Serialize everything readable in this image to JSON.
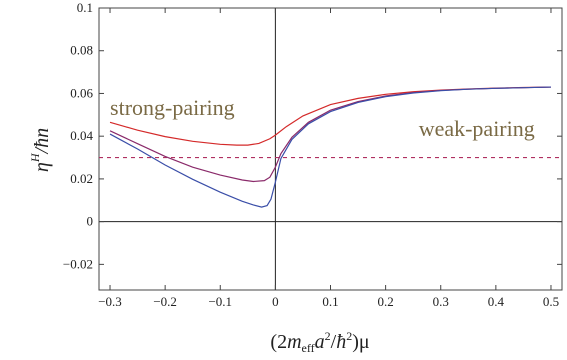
{
  "chart_data": {
    "type": "line",
    "xlabel_parts": {
      "pre": "(2",
      "m": "m",
      "eff": "eff",
      "a": "a",
      "a_exp": "2",
      "slash": "/",
      "hbar": "ħ",
      "hbar_exp": "2",
      "post": ")μ"
    },
    "ylabel_parts": {
      "eta": "η",
      "sup": "H",
      "rest": "/ħn"
    },
    "xlim": [
      -0.32,
      0.52
    ],
    "ylim": [
      -0.032,
      0.1
    ],
    "xticks": [
      {
        "value": -0.3,
        "label": "−0.3"
      },
      {
        "value": -0.2,
        "label": "−0.2"
      },
      {
        "value": -0.1,
        "label": "−0.1"
      },
      {
        "value": 0,
        "label": "0"
      },
      {
        "value": 0.1,
        "label": "0.1"
      },
      {
        "value": 0.2,
        "label": "0.2"
      },
      {
        "value": 0.3,
        "label": "0.3"
      },
      {
        "value": 0.4,
        "label": "0.4"
      },
      {
        "value": 0.5,
        "label": "0.5"
      }
    ],
    "yticks": [
      {
        "value": -0.02,
        "label": "−0.02"
      },
      {
        "value": 0,
        "label": "0"
      },
      {
        "value": 0.02,
        "label": "0.02"
      },
      {
        "value": 0.04,
        "label": "0.04"
      },
      {
        "value": 0.06,
        "label": "0.06"
      },
      {
        "value": 0.08,
        "label": "0.08"
      },
      {
        "value": 0.1,
        "label": "0.1"
      }
    ],
    "annotations": [
      {
        "text": "strong-pairing",
        "x": -0.3,
        "y": 0.05
      },
      {
        "text": "weak-pairing",
        "x": 0.26,
        "y": 0.04
      }
    ],
    "reference_line": {
      "y": 0.03,
      "style": "dashed",
      "color": "#b03060"
    },
    "series": [
      {
        "color": "#d42a2a",
        "points": [
          [
            -0.3,
            0.0465
          ],
          [
            -0.25,
            0.0428
          ],
          [
            -0.2,
            0.0398
          ],
          [
            -0.15,
            0.0376
          ],
          [
            -0.1,
            0.0362
          ],
          [
            -0.07,
            0.0358
          ],
          [
            -0.05,
            0.0358
          ],
          [
            -0.03,
            0.0366
          ],
          [
            -0.01,
            0.0388
          ],
          [
            0.0,
            0.0405
          ],
          [
            0.02,
            0.0445
          ],
          [
            0.05,
            0.0495
          ],
          [
            0.1,
            0.0548
          ],
          [
            0.15,
            0.0577
          ],
          [
            0.2,
            0.0596
          ],
          [
            0.25,
            0.0608
          ],
          [
            0.3,
            0.0616
          ],
          [
            0.35,
            0.0621
          ],
          [
            0.4,
            0.0625
          ],
          [
            0.45,
            0.0628
          ],
          [
            0.5,
            0.063
          ]
        ]
      },
      {
        "color": "#8a2a6a",
        "points": [
          [
            -0.3,
            0.0425
          ],
          [
            -0.25,
            0.0365
          ],
          [
            -0.2,
            0.0305
          ],
          [
            -0.15,
            0.0255
          ],
          [
            -0.1,
            0.0218
          ],
          [
            -0.06,
            0.0195
          ],
          [
            -0.04,
            0.0188
          ],
          [
            -0.02,
            0.0192
          ],
          [
            -0.01,
            0.0208
          ],
          [
            0.0,
            0.0255
          ],
          [
            0.01,
            0.0318
          ],
          [
            0.03,
            0.0395
          ],
          [
            0.06,
            0.0465
          ],
          [
            0.1,
            0.0522
          ],
          [
            0.15,
            0.0562
          ],
          [
            0.2,
            0.0588
          ],
          [
            0.25,
            0.0604
          ],
          [
            0.3,
            0.0614
          ],
          [
            0.35,
            0.062
          ],
          [
            0.4,
            0.0624
          ],
          [
            0.45,
            0.0627
          ],
          [
            0.5,
            0.063
          ]
        ]
      },
      {
        "color": "#3a4ea8",
        "points": [
          [
            -0.3,
            0.041
          ],
          [
            -0.25,
            0.034
          ],
          [
            -0.2,
            0.0265
          ],
          [
            -0.15,
            0.0198
          ],
          [
            -0.1,
            0.0138
          ],
          [
            -0.06,
            0.0095
          ],
          [
            -0.04,
            0.0078
          ],
          [
            -0.025,
            0.0068
          ],
          [
            -0.015,
            0.0075
          ],
          [
            -0.008,
            0.0105
          ],
          [
            0.0,
            0.0185
          ],
          [
            0.01,
            0.0295
          ],
          [
            0.03,
            0.0385
          ],
          [
            0.06,
            0.0458
          ],
          [
            0.1,
            0.0515
          ],
          [
            0.15,
            0.0558
          ],
          [
            0.2,
            0.0585
          ],
          [
            0.25,
            0.0602
          ],
          [
            0.3,
            0.0613
          ],
          [
            0.35,
            0.062
          ],
          [
            0.4,
            0.0624
          ],
          [
            0.45,
            0.0627
          ],
          [
            0.5,
            0.063
          ]
        ]
      }
    ]
  }
}
